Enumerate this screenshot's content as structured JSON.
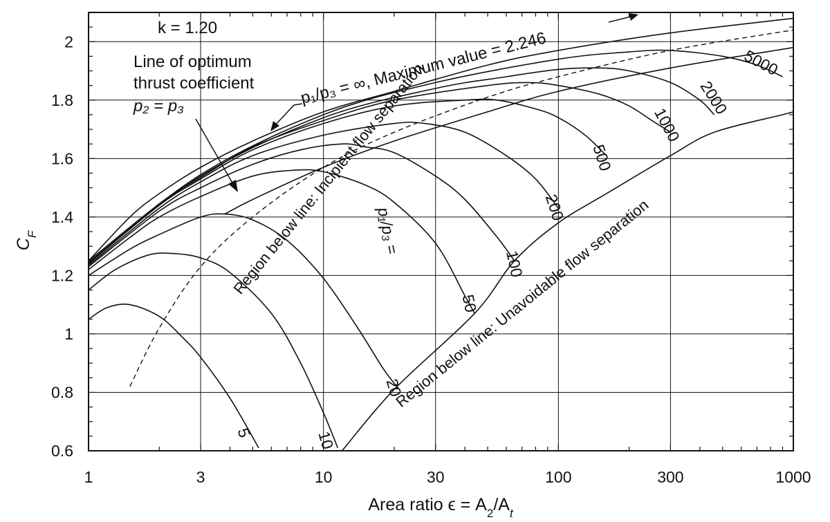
{
  "chart_data": {
    "type": "line",
    "title": "",
    "xlabel_text": "Area ratio ϵ = A",
    "xlabel_sub1": "2",
    "xlabel_mid": "/A",
    "xlabel_sub2": "t",
    "ylabel": "C",
    "ylabel_sub": "F",
    "x_scale": "log",
    "xlim": [
      1,
      1000
    ],
    "ylim": [
      0.6,
      2.1
    ],
    "grid": true,
    "x_ticks": [
      "1",
      "3",
      "10",
      "30",
      "100",
      "300",
      "1000"
    ],
    "y_ticks": [
      "0.6",
      "0.8",
      "1",
      "1.2",
      "1.4",
      "1.6",
      "1.8",
      "2"
    ],
    "k_label": "k = 1.20",
    "optimum_note": [
      "Line of optimum",
      "thrust coefficient"
    ],
    "optimum_formula": "p₂ = p₃",
    "max_label": "p₁/p₃ = ∞, Maximum value = 2.246",
    "pressure_ratio_prefix": "p₁/p₃ =",
    "region_incipient": "Region below line: Incipient flow separation",
    "region_unavoidable": "Region below line: Unavoidable flow separation",
    "series": [
      {
        "name": "5",
        "x": [
          1,
          1.2,
          1.5,
          2,
          2.5,
          3,
          4,
          5.3
        ],
        "y": [
          1.05,
          1.09,
          1.1,
          1.06,
          0.99,
          0.92,
          0.78,
          0.61
        ]
      },
      {
        "name": "10",
        "x": [
          1,
          1.3,
          1.8,
          2.3,
          3,
          4,
          6,
          8,
          10,
          11.5
        ],
        "y": [
          1.15,
          1.22,
          1.27,
          1.275,
          1.26,
          1.21,
          1.07,
          0.9,
          0.73,
          0.61
        ]
      },
      {
        "name": "20",
        "x": [
          1,
          1.5,
          2,
          3,
          3.8,
          5,
          7,
          10,
          14,
          18,
          21
        ],
        "y": [
          1.2,
          1.29,
          1.34,
          1.4,
          1.41,
          1.39,
          1.32,
          1.19,
          1.02,
          0.88,
          0.81
        ]
      },
      {
        "name": "50",
        "x": [
          1,
          1.5,
          2,
          3,
          5,
          7.5,
          10,
          15,
          20,
          30,
          40,
          44
        ],
        "y": [
          1.22,
          1.33,
          1.4,
          1.47,
          1.54,
          1.56,
          1.555,
          1.51,
          1.45,
          1.31,
          1.13,
          1.07
        ]
      },
      {
        "name": "100",
        "x": [
          1,
          2,
          3,
          5,
          8,
          12,
          15,
          20,
          30,
          40,
          55,
          65
        ],
        "y": [
          1.23,
          1.42,
          1.5,
          1.58,
          1.63,
          1.65,
          1.64,
          1.62,
          1.54,
          1.46,
          1.33,
          1.25
        ]
      },
      {
        "name": "200",
        "x": [
          1,
          2,
          3,
          5,
          10,
          20,
          27,
          40,
          60,
          80,
          100
        ],
        "y": [
          1.235,
          1.43,
          1.52,
          1.61,
          1.68,
          1.72,
          1.72,
          1.69,
          1.61,
          1.53,
          1.43
        ]
      },
      {
        "name": "500",
        "x": [
          1,
          2,
          3,
          5,
          10,
          20,
          40,
          55,
          80,
          100,
          130,
          160
        ],
        "y": [
          1.24,
          1.44,
          1.53,
          1.63,
          1.72,
          1.78,
          1.8,
          1.8,
          1.77,
          1.74,
          1.68,
          1.61
        ]
      },
      {
        "name": "1000",
        "x": [
          1,
          2,
          3,
          5,
          10,
          20,
          50,
          75,
          100,
          150,
          200,
          250,
          300
        ],
        "y": [
          1.24,
          1.445,
          1.535,
          1.64,
          1.73,
          1.8,
          1.85,
          1.86,
          1.85,
          1.82,
          1.78,
          1.73,
          1.69
        ]
      },
      {
        "name": "2000",
        "x": [
          1,
          3,
          10,
          30,
          60,
          100,
          150,
          200,
          300,
          400,
          460
        ],
        "y": [
          1.245,
          1.54,
          1.74,
          1.84,
          1.88,
          1.905,
          1.91,
          1.9,
          1.86,
          1.8,
          1.75
        ]
      },
      {
        "name": "5000",
        "x": [
          1,
          3,
          10,
          30,
          100,
          200,
          300,
          500,
          700,
          900
        ],
        "y": [
          1.25,
          1.545,
          1.75,
          1.86,
          1.94,
          1.965,
          1.97,
          1.95,
          1.92,
          1.88
        ]
      },
      {
        "name": "optimum_dashed",
        "x": [
          1.5,
          2,
          3,
          5,
          10,
          20,
          50,
          100,
          300,
          1000
        ],
        "y": [
          0.82,
          1.02,
          1.23,
          1.4,
          1.57,
          1.69,
          1.81,
          1.88,
          1.97,
          2.04
        ]
      },
      {
        "name": "maximum",
        "x": [
          1,
          1.5,
          2,
          3,
          5,
          10,
          20,
          50,
          100,
          300,
          1000
        ],
        "y": [
          1.25,
          1.4,
          1.48,
          1.57,
          1.66,
          1.76,
          1.83,
          1.92,
          1.97,
          2.03,
          2.08
        ]
      },
      {
        "name": "incipient_separation",
        "x": [
          3.8,
          5,
          10,
          20,
          50,
          100,
          300,
          1000
        ],
        "y": [
          1.41,
          1.46,
          1.57,
          1.66,
          1.76,
          1.83,
          1.91,
          1.98
        ]
      },
      {
        "name": "unavoidable_separation",
        "x": [
          12,
          20,
          44,
          65,
          100,
          160,
          300,
          460,
          900,
          1000
        ],
        "y": [
          0.6,
          0.81,
          1.07,
          1.25,
          1.38,
          1.48,
          1.61,
          1.69,
          1.75,
          1.76
        ]
      }
    ]
  }
}
